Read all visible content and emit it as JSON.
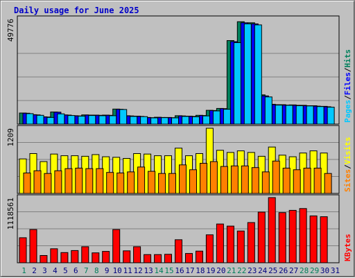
{
  "title": "Daily usage for June 2025",
  "colors": {
    "hits": "#00805c",
    "files": "#0000ff",
    "pages": "#00c8ff",
    "visits": "#ffff00",
    "sites": "#ff8000",
    "kbytes": "#ff0000",
    "weekend_label": "#00805c",
    "weekday_label": "#000080"
  },
  "chart_data": {
    "type": "bar",
    "x": [
      "1",
      "2",
      "3",
      "4",
      "5",
      "6",
      "7",
      "8",
      "9",
      "10",
      "11",
      "12",
      "13",
      "14",
      "15",
      "16",
      "17",
      "18",
      "19",
      "20",
      "21",
      "22",
      "23",
      "24",
      "25",
      "26",
      "27",
      "28",
      "29",
      "30",
      "31"
    ],
    "weekend_days": [
      "1",
      "7",
      "8",
      "14",
      "15",
      "21",
      "22",
      "28",
      "29"
    ],
    "panels": [
      {
        "id": "hits-files-pages",
        "max_label": "49776",
        "ylim": [
          0,
          49776
        ],
        "legend": [
          {
            "text": "Pages",
            "color_key": "pages"
          },
          {
            "text": "/",
            "color_key": "separator"
          },
          {
            "text": "Files",
            "color_key": "files"
          },
          {
            "text": "/",
            "color_key": "separator"
          },
          {
            "text": "Hits",
            "color_key": "hits"
          }
        ],
        "series": [
          {
            "name": "Hits",
            "color_key": "hits",
            "values": [
              5300,
              4500,
              3500,
              5800,
              4400,
              4000,
              4400,
              4300,
              4300,
              7200,
              4000,
              3800,
              3200,
              3300,
              3200,
              4000,
              3800,
              4200,
              6600,
              7500,
              40000,
              49000,
              48500,
              14000,
              9500,
              9300,
              9200,
              9000,
              8800,
              8500,
              0
            ]
          },
          {
            "name": "Files",
            "color_key": "files",
            "values": [
              5200,
              4400,
              3400,
              5700,
              4300,
              3900,
              4300,
              4200,
              4200,
              7100,
              3900,
              3700,
              3100,
              3200,
              3100,
              3900,
              3700,
              4100,
              6500,
              7400,
              39500,
              48500,
              48000,
              13500,
              9300,
              9100,
              9000,
              8800,
              8600,
              8300,
              0
            ]
          },
          {
            "name": "Pages",
            "color_key": "pages",
            "values": [
              5000,
              4200,
              3200,
              4900,
              4100,
              3800,
              4100,
              4000,
              4000,
              7000,
              3700,
              3600,
              3000,
              3100,
              3000,
              3700,
              3500,
              3900,
              6300,
              7100,
              39000,
              48000,
              47500,
              13000,
              9100,
              9000,
              8800,
              8700,
              8400,
              8100,
              0
            ]
          }
        ]
      },
      {
        "id": "visits-sites",
        "max_label": "1209",
        "ylim": [
          0,
          1209
        ],
        "legend": [
          {
            "text": "Sites",
            "color_key": "sites"
          },
          {
            "text": "/",
            "color_key": "separator"
          },
          {
            "text": "Visits",
            "color_key": "visits"
          }
        ],
        "series": [
          {
            "name": "Visits",
            "color_key": "visits",
            "values": [
              640,
              740,
              590,
              730,
              700,
              700,
              690,
              720,
              680,
              670,
              650,
              740,
              730,
              700,
              700,
              840,
              700,
              740,
              1209,
              800,
              760,
              790,
              760,
              690,
              860,
              710,
              680,
              750,
              790,
              750,
              0
            ]
          },
          {
            "name": "Sites",
            "color_key": "sites",
            "values": [
              380,
              420,
              370,
              420,
              460,
              470,
              460,
              460,
              390,
              380,
              400,
              490,
              410,
              370,
              370,
              530,
              440,
              560,
              590,
              500,
              510,
              510,
              480,
              400,
              600,
              470,
              440,
              470,
              470,
              370,
              0
            ]
          }
        ]
      },
      {
        "id": "kbytes",
        "max_label": "1118561",
        "ylim": [
          0,
          1118561
        ],
        "legend": [
          {
            "text": "KBytes",
            "color_key": "kbytes"
          }
        ],
        "series": [
          {
            "name": "KBytes",
            "color_key": "kbytes",
            "values": [
              430000,
              570000,
              125000,
              240000,
              175000,
              210000,
              275000,
              170000,
              195000,
              570000,
              205000,
              275000,
              140000,
              140000,
              145000,
              395000,
              160000,
              200000,
              480000,
              665000,
              630000,
              545000,
              690000,
              870000,
              1118561,
              860000,
              900000,
              930000,
              805000,
              790000,
              0
            ]
          }
        ]
      }
    ]
  }
}
